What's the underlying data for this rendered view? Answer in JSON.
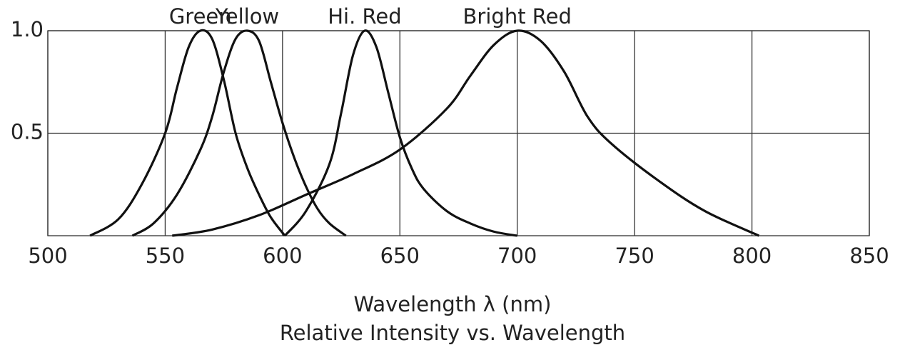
{
  "chart_data": {
    "type": "line",
    "title": "Relative Intensity vs. Wavelength",
    "xlabel": "Wavelength λ (nm)",
    "xlim": [
      500,
      850
    ],
    "xticks": [
      500,
      550,
      600,
      650,
      700,
      750,
      800,
      850
    ],
    "ylim": [
      0,
      1
    ],
    "yticks": [
      0.5,
      {
        "value": 1,
        "label": "1.0"
      }
    ],
    "grid": true,
    "series": [
      {
        "name": "Green",
        "color": "#111111",
        "x": [
          518,
          530,
          540,
          550,
          555,
          560,
          565,
          570,
          575,
          580,
          585,
          590,
          595,
          601
        ],
        "values": [
          0,
          0.08,
          0.25,
          0.5,
          0.72,
          0.92,
          1.0,
          0.96,
          0.76,
          0.5,
          0.33,
          0.2,
          0.09,
          0
        ]
      },
      {
        "name": "Yellow",
        "color": "#111111",
        "x": [
          536,
          545,
          555,
          565,
          570,
          575,
          580,
          585,
          590,
          595,
          600,
          605,
          610,
          615,
          620,
          627
        ],
        "values": [
          0,
          0.06,
          0.2,
          0.42,
          0.58,
          0.8,
          0.96,
          1.0,
          0.95,
          0.75,
          0.55,
          0.38,
          0.24,
          0.13,
          0.06,
          0
        ]
      },
      {
        "name": "Hi. Red",
        "color": "#111111",
        "x": [
          601,
          610,
          620,
          625,
          630,
          635,
          640,
          645,
          650,
          655,
          660,
          670,
          680,
          690,
          700
        ],
        "values": [
          0,
          0.12,
          0.35,
          0.6,
          0.88,
          1.0,
          0.92,
          0.7,
          0.48,
          0.33,
          0.23,
          0.12,
          0.06,
          0.02,
          0
        ]
      },
      {
        "name": "Bright Red",
        "color": "#111111",
        "x": [
          553,
          570,
          590,
          610,
          630,
          650,
          670,
          680,
          690,
          700,
          710,
          720,
          730,
          740,
          760,
          780,
          803
        ],
        "values": [
          0,
          0.03,
          0.1,
          0.2,
          0.3,
          0.42,
          0.62,
          0.78,
          0.93,
          1.0,
          0.95,
          0.8,
          0.58,
          0.45,
          0.27,
          0.12,
          0
        ]
      }
    ]
  }
}
